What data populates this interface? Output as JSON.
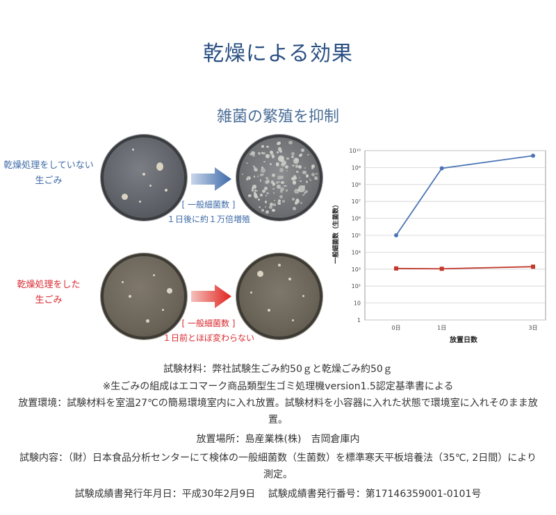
{
  "title": "乾燥による効果",
  "subtitle": "雑菌の繁殖を抑制",
  "rows": [
    {
      "label_line1": "乾燥処理をしていない",
      "label_line2": "生ごみ",
      "note_line1": "[ 一般細菌数 ]",
      "note_line2": "１日後に約１万倍増殖",
      "color": "#3d6aa6"
    },
    {
      "label_line1": "乾燥処理をした",
      "label_line2": "生ごみ",
      "note_line1": "[ 一般細菌数 ]",
      "note_line2": "１日前とほぼ変わらない",
      "color": "#d8262c"
    }
  ],
  "chart_data": {
    "type": "line",
    "categories": [
      "0日",
      "1日",
      "3日"
    ],
    "x": [
      0,
      1,
      3
    ],
    "xlabel": "放置日数",
    "ylabel": "一般細菌数（生菌数）",
    "yscale": "log",
    "ylim": [
      1,
      10000000000
    ],
    "ytick_labels": [
      "1",
      "10",
      "10²",
      "10³",
      "10⁴",
      "10⁵",
      "10⁶",
      "10⁷",
      "10⁸",
      "10⁹",
      "10¹⁰"
    ],
    "grid": true,
    "series": [
      {
        "values": [
          100000,
          900000000,
          5000000000
        ],
        "color": "#4a74b5",
        "marker": "circle"
      },
      {
        "values": [
          1100,
          1050,
          1400
        ],
        "color": "#c0392b",
        "marker": "square"
      }
    ]
  },
  "footer": [
    "試験材料：弊社試験生ごみ約50ｇと乾燥ごみ約50ｇ",
    "※生ごみの組成はエコマーク商品類型生ゴミ処理機version1.5認定基準書による",
    "放置環境：試験材料を室温27℃の簡易環境室内に入れ放置。試験材料を小容器に入れた状態で環境室に入れそのまま放",
    "置。",
    "放置場所：島産業株(株)　吉岡倉庫内",
    "試験内容：（財）日本食品分析センターにて検体の一般細菌数（生菌数）を標準寒天平板培養法（35℃, 2日間）により",
    "測定。",
    "試験成績書発行年月日：平成30年2月9日　 試験成績書発行番号：第17146359001-0101号"
  ]
}
